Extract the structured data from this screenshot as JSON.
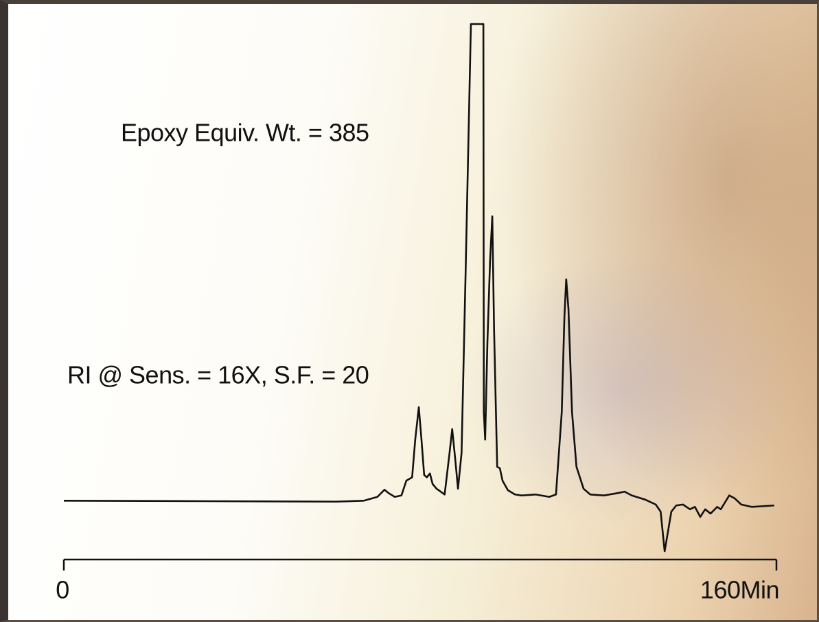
{
  "chart_data": {
    "type": "line",
    "annotations": [
      "Epoxy Equiv. Wt. = 385",
      "RI @ Sens. = 16X, S.F. = 20"
    ],
    "x": [
      0,
      31.9,
      61.2,
      67.4,
      70.4,
      72.0,
      72.9,
      74.3,
      75.8,
      76.9,
      78.2,
      78.9,
      79.7,
      80.3,
      80.9,
      81.5,
      82.2,
      82.8,
      83.7,
      84.6,
      85.5,
      86.6,
      87.2,
      87.9,
      88.5,
      89.3,
      90.2,
      91.4,
      94.2,
      94.3,
      94.6,
      95.1,
      95.7,
      96.2,
      96.6,
      97.3,
      97.9,
      98.5,
      99.7,
      101.3,
      102.8,
      105.9,
      109.0,
      110.5,
      111.8,
      112.4,
      112.8,
      113.3,
      114.1,
      115.1,
      116.7,
      118.2,
      121.3,
      124.4,
      125.9,
      127.5,
      130.6,
      132.9,
      134.0,
      134.9,
      135.5,
      136.4,
      137.5,
      139.0,
      140.6,
      141.7,
      142.9,
      144.0,
      145.2,
      146.7,
      147.5,
      149.4,
      150.6,
      152.1,
      154.5,
      159.5
    ],
    "values": [
      0.1,
      0,
      -0.1,
      0.1,
      0.9,
      2.4,
      1.7,
      0.9,
      1.2,
      4.3,
      5.0,
      12.9,
      19.7,
      12.9,
      5.5,
      5.0,
      5.8,
      3.6,
      2.6,
      2.0,
      1.4,
      10.1,
      15.1,
      8.6,
      2.6,
      10.1,
      47.5,
      100,
      100,
      18.7,
      12.9,
      33.1,
      50.4,
      59.7,
      36.0,
      7.2,
      6.9,
      4.3,
      2.3,
      1.4,
      1.2,
      1.4,
      0.9,
      1.4,
      18.7,
      38.8,
      46.5,
      40.3,
      18.7,
      7.2,
      2.6,
      1.4,
      1.2,
      1.7,
      2.0,
      1.2,
      0.3,
      -0.7,
      -2.2,
      -10.5,
      -7.2,
      -2.2,
      -0.9,
      -0.7,
      -1.7,
      -1.2,
      -3.3,
      -1.7,
      -2.6,
      -1.2,
      -1.7,
      1.2,
      0.6,
      -0.7,
      -1.2,
      -0.9
    ],
    "color": "#111111",
    "xlim": [
      0,
      160
    ],
    "xticks": [
      0,
      {
        "value": 160,
        "label": "160Min"
      }
    ],
    "ylim": [
      -12,
      100
    ]
  }
}
